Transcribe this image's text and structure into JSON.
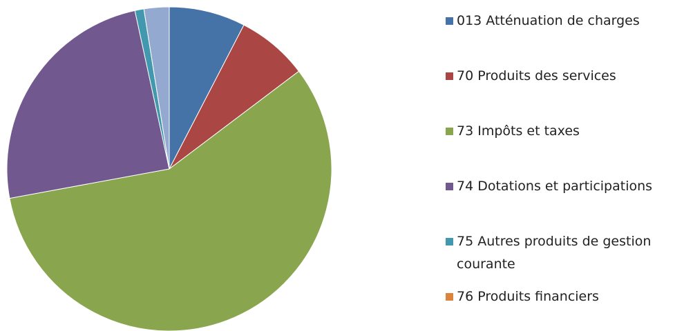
{
  "chart_data": {
    "type": "pie",
    "categories": [
      "013 Atténuation de charges",
      "70 Produits des services",
      "73 Impôts et taxes",
      "74 Dotations et participations",
      "75 Autres produits de gestion courante",
      "76 Produits financiers",
      null
    ],
    "values": [
      7.6,
      7.1,
      57.4,
      24.5,
      0.9,
      0,
      2.5
    ],
    "colors": [
      "#4572a7",
      "#aa4643",
      "#89a54e",
      "#71588f",
      "#4198af",
      "#db843d",
      "#93a9cf"
    ],
    "legend": "right"
  }
}
